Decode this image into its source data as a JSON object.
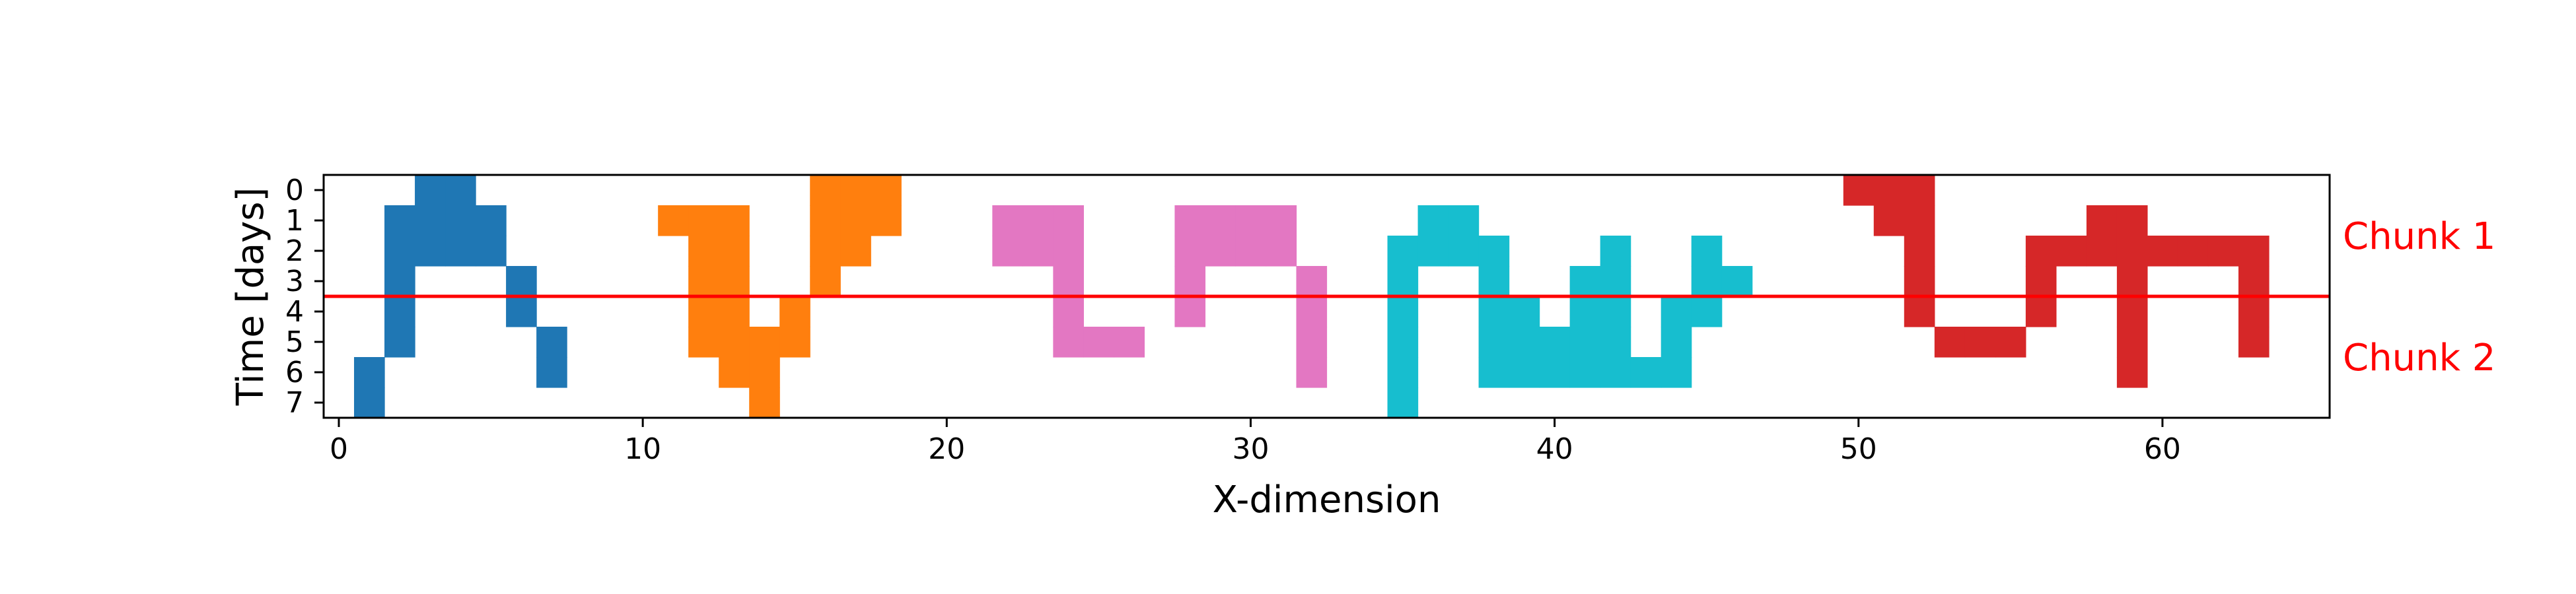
{
  "chart_data": {
    "type": "heatmap",
    "xlabel": "X-dimension",
    "ylabel": "Time [days]",
    "xlim": [
      -0.5,
      65.5
    ],
    "ylim": [
      -0.5,
      7.5
    ],
    "y_inverted": true,
    "x_ticks": [
      0,
      10,
      20,
      30,
      40,
      50,
      60
    ],
    "y_ticks": [
      0,
      1,
      2,
      3,
      4,
      5,
      6,
      7
    ],
    "grid": false,
    "divider": {
      "y": 3.5,
      "color": "#ff0000"
    },
    "annotations": [
      {
        "text": "Chunk 1",
        "color": "#ff0000",
        "y": 1.5
      },
      {
        "text": "Chunk 2",
        "color": "#ff0000",
        "y": 5.5
      }
    ],
    "series": [
      {
        "color": "#1f77b4",
        "cells": [
          [
            3,
            0
          ],
          [
            4,
            0
          ],
          [
            2,
            1
          ],
          [
            3,
            1
          ],
          [
            4,
            1
          ],
          [
            5,
            1
          ],
          [
            2,
            2
          ],
          [
            3,
            2
          ],
          [
            4,
            2
          ],
          [
            5,
            2
          ],
          [
            2,
            3
          ],
          [
            6,
            3
          ],
          [
            2,
            4
          ],
          [
            6,
            4
          ],
          [
            2,
            5
          ],
          [
            7,
            5
          ],
          [
            1,
            6
          ],
          [
            7,
            6
          ],
          [
            1,
            7
          ]
        ]
      },
      {
        "color": "#ff7f0e",
        "cells": [
          [
            16,
            0
          ],
          [
            17,
            0
          ],
          [
            18,
            0
          ],
          [
            11,
            1
          ],
          [
            12,
            1
          ],
          [
            13,
            1
          ],
          [
            16,
            1
          ],
          [
            17,
            1
          ],
          [
            18,
            1
          ],
          [
            12,
            2
          ],
          [
            13,
            2
          ],
          [
            16,
            2
          ],
          [
            17,
            2
          ],
          [
            12,
            3
          ],
          [
            13,
            3
          ],
          [
            16,
            3
          ],
          [
            12,
            4
          ],
          [
            13,
            4
          ],
          [
            15,
            4
          ],
          [
            12,
            5
          ],
          [
            13,
            5
          ],
          [
            14,
            5
          ],
          [
            15,
            5
          ],
          [
            13,
            6
          ],
          [
            14,
            6
          ],
          [
            14,
            7
          ]
        ]
      },
      {
        "color": "#e377c2",
        "cells": [
          [
            22,
            1
          ],
          [
            23,
            1
          ],
          [
            24,
            1
          ],
          [
            28,
            1
          ],
          [
            29,
            1
          ],
          [
            30,
            1
          ],
          [
            31,
            1
          ],
          [
            22,
            2
          ],
          [
            23,
            2
          ],
          [
            24,
            2
          ],
          [
            28,
            2
          ],
          [
            29,
            2
          ],
          [
            30,
            2
          ],
          [
            31,
            2
          ],
          [
            24,
            3
          ],
          [
            28,
            3
          ],
          [
            32,
            3
          ],
          [
            24,
            4
          ],
          [
            28,
            4
          ],
          [
            32,
            4
          ],
          [
            24,
            5
          ],
          [
            25,
            5
          ],
          [
            26,
            5
          ],
          [
            32,
            5
          ],
          [
            32,
            6
          ]
        ]
      },
      {
        "color": "#17becf",
        "cells": [
          [
            36,
            1
          ],
          [
            37,
            1
          ],
          [
            35,
            2
          ],
          [
            36,
            2
          ],
          [
            37,
            2
          ],
          [
            38,
            2
          ],
          [
            42,
            2
          ],
          [
            45,
            2
          ],
          [
            35,
            3
          ],
          [
            38,
            3
          ],
          [
            41,
            3
          ],
          [
            42,
            3
          ],
          [
            45,
            3
          ],
          [
            46,
            3
          ],
          [
            35,
            4
          ],
          [
            38,
            4
          ],
          [
            39,
            4
          ],
          [
            41,
            4
          ],
          [
            42,
            4
          ],
          [
            44,
            4
          ],
          [
            45,
            4
          ],
          [
            35,
            5
          ],
          [
            38,
            5
          ],
          [
            39,
            5
          ],
          [
            40,
            5
          ],
          [
            41,
            5
          ],
          [
            42,
            5
          ],
          [
            44,
            5
          ],
          [
            35,
            6
          ],
          [
            38,
            6
          ],
          [
            39,
            6
          ],
          [
            40,
            6
          ],
          [
            41,
            6
          ],
          [
            42,
            6
          ],
          [
            43,
            6
          ],
          [
            44,
            6
          ],
          [
            35,
            7
          ]
        ]
      },
      {
        "color": "#d62728",
        "cells": [
          [
            50,
            0
          ],
          [
            51,
            0
          ],
          [
            52,
            0
          ],
          [
            51,
            1
          ],
          [
            52,
            1
          ],
          [
            58,
            1
          ],
          [
            59,
            1
          ],
          [
            52,
            2
          ],
          [
            56,
            2
          ],
          [
            57,
            2
          ],
          [
            58,
            2
          ],
          [
            59,
            2
          ],
          [
            60,
            2
          ],
          [
            61,
            2
          ],
          [
            62,
            2
          ],
          [
            63,
            2
          ],
          [
            52,
            3
          ],
          [
            56,
            3
          ],
          [
            59,
            3
          ],
          [
            63,
            3
          ],
          [
            52,
            4
          ],
          [
            56,
            4
          ],
          [
            59,
            4
          ],
          [
            63,
            4
          ],
          [
            53,
            5
          ],
          [
            54,
            5
          ],
          [
            55,
            5
          ],
          [
            59,
            5
          ],
          [
            63,
            5
          ],
          [
            59,
            6
          ]
        ]
      }
    ]
  }
}
